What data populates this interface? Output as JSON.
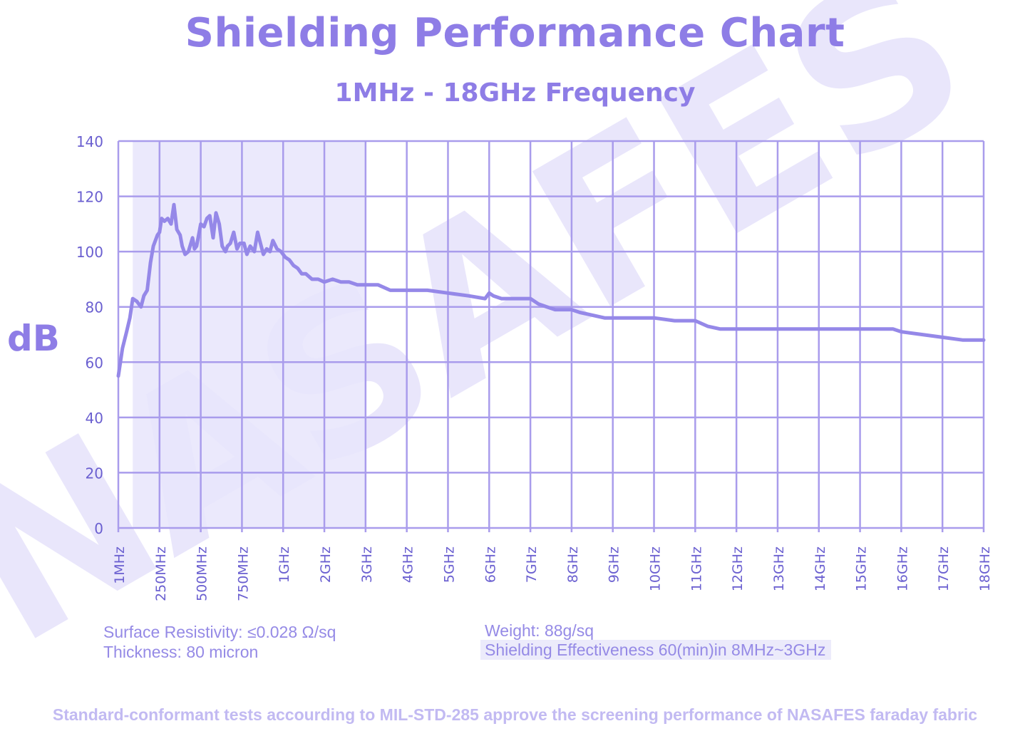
{
  "header": {
    "title": "Shielding Performance Chart",
    "subtitle": "1MHz - 18GHz Frequency",
    "y_axis_label": "dB"
  },
  "watermark": {
    "text": "NASAFES"
  },
  "specs": {
    "surface_resistivity": "Surface Resistivity: ≤0.028 Ω/sq",
    "thickness": "Thickness: 80 micron",
    "weight": "Weight: 88g/sq",
    "shielding_effectiveness": "Shielding Effectiveness 60(min)in 8MHz~3GHz"
  },
  "footer": {
    "note": "Standard-conformant tests accourding to MIL-STD-285 approve the screening performance of NASAFES faraday fabric"
  },
  "colors": {
    "line": "#9588e8",
    "grid": "#a99cec",
    "shade": "#e8e5fb",
    "tick_text": "#6a5fd0",
    "watermark": "#e9e6fb"
  },
  "chart_data": {
    "type": "line",
    "title": "Shielding Performance Chart",
    "subtitle": "1MHz - 18GHz Frequency",
    "ylabel": "dB",
    "xlabel": "",
    "ylim": [
      0,
      140
    ],
    "yticks": [
      0,
      20,
      40,
      60,
      80,
      100,
      120,
      140
    ],
    "xlim": [
      0,
      21
    ],
    "xtick_labels": [
      "1MHz",
      "250MHz",
      "500MHz",
      "750MHz",
      "1GHz",
      "2GHz",
      "3GHz",
      "4GHz",
      "5GHz",
      "6GHz",
      "7GHz",
      "8GHz",
      "9GHz",
      "10GHz",
      "11GHz",
      "12GHz",
      "13GHz",
      "14GHz",
      "15GHz",
      "16GHz",
      "17GHz",
      "18GHz"
    ],
    "shaded_region": [
      0.35,
      6.0
    ],
    "grid": true,
    "series": [
      {
        "name": "Shielding Effectiveness (dB)",
        "x": [
          0,
          0.1,
          0.2,
          0.28,
          0.35,
          0.45,
          0.55,
          0.62,
          0.7,
          0.78,
          0.85,
          0.95,
          1.0,
          1.05,
          1.12,
          1.2,
          1.28,
          1.35,
          1.42,
          1.5,
          1.55,
          1.62,
          1.7,
          1.8,
          1.85,
          1.9,
          2.0,
          2.08,
          2.15,
          2.22,
          2.3,
          2.37,
          2.45,
          2.52,
          2.6,
          2.65,
          2.72,
          2.8,
          2.88,
          2.95,
          3.05,
          3.12,
          3.2,
          3.3,
          3.38,
          3.45,
          3.52,
          3.6,
          3.68,
          3.75,
          3.85,
          3.95,
          4.05,
          4.15,
          4.25,
          4.35,
          4.45,
          4.55,
          4.7,
          4.85,
          5.0,
          5.2,
          5.4,
          5.6,
          5.8,
          6.0,
          6.3,
          6.6,
          7.0,
          7.2,
          7.5,
          8.0,
          8.5,
          8.9,
          9.0,
          9.1,
          9.3,
          9.5,
          9.7,
          10.0,
          10.2,
          10.4,
          10.6,
          10.9,
          11.0,
          11.2,
          11.5,
          11.8,
          12.0,
          12.5,
          13.0,
          13.5,
          14.0,
          14.3,
          14.6,
          15.0,
          16.0,
          17.0,
          18.0,
          18.5,
          18.8,
          19.0,
          19.5,
          20.0,
          20.5,
          21.0
        ],
        "y": [
          55,
          65,
          71,
          76,
          83,
          82,
          80,
          84,
          86,
          96,
          102,
          106,
          107,
          112,
          111,
          112,
          110,
          117,
          108,
          106,
          102,
          99,
          100,
          105,
          101,
          102,
          110,
          109,
          112,
          113,
          105,
          114,
          110,
          102,
          100,
          102,
          103,
          107,
          101,
          103,
          103,
          99,
          102,
          100,
          107,
          103,
          99,
          101,
          100,
          104,
          101,
          100,
          98,
          97,
          95,
          94,
          92,
          92,
          90,
          90,
          89,
          90,
          89,
          89,
          88,
          88,
          88,
          86,
          86,
          86,
          86,
          85,
          84,
          83,
          85,
          84,
          83,
          83,
          83,
          83,
          81,
          80,
          79,
          79,
          79,
          78,
          77,
          76,
          76,
          76,
          76,
          75,
          75,
          73,
          72,
          72,
          72,
          72,
          72,
          72,
          72,
          71,
          70,
          69,
          68,
          68
        ]
      }
    ]
  }
}
